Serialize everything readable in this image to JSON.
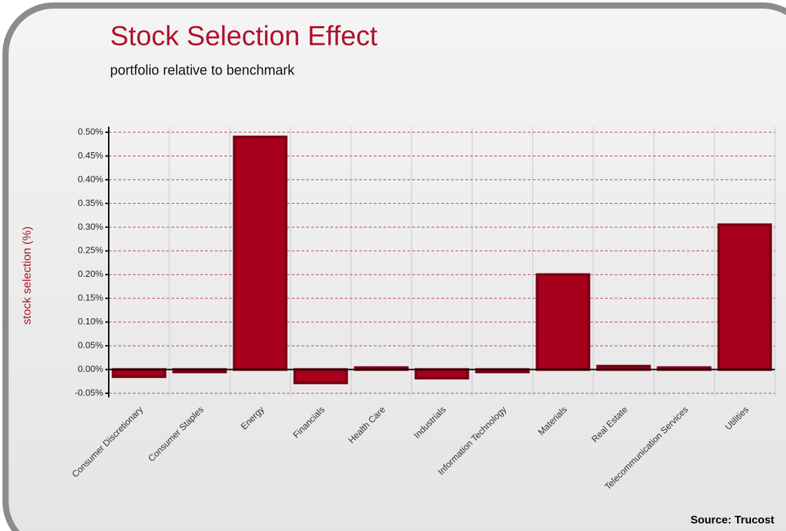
{
  "chart_data": {
    "type": "bar",
    "title": "Stock Selection Effect",
    "subtitle": "portfolio relative to benchmark",
    "y_label": "stock selection (%)",
    "source": "Source: Trucost",
    "categories": [
      "Consumer Discretionary",
      "Consumer Staples",
      "Energy",
      "Financials",
      "Health Care",
      "Industrials",
      "Information Technology",
      "Materials",
      "Real Estate",
      "Telecommunication Services",
      "Utilities"
    ],
    "values": [
      -0.015,
      -0.005,
      0.49,
      -0.028,
      0.004,
      -0.018,
      -0.005,
      0.2,
      0.007,
      0.004,
      0.305
    ],
    "color": "#a8001c",
    "ylim": [
      -0.05,
      0.5
    ],
    "yticks": [
      {
        "value": -0.05,
        "label": "-0.05%"
      },
      {
        "value": 0,
        "label": "0.00%"
      },
      {
        "value": 0.05,
        "label": "0.05%"
      },
      {
        "value": 0.1,
        "label": "0.10%"
      },
      {
        "value": 0.15,
        "label": "0.15%"
      },
      {
        "value": 0.2,
        "label": "0.20%"
      },
      {
        "value": 0.25,
        "label": "0.25%"
      },
      {
        "value": 0.3,
        "label": "0.30%"
      },
      {
        "value": 0.35,
        "label": "0.35%"
      },
      {
        "value": 0.4,
        "label": "0.40%"
      },
      {
        "value": 0.45,
        "label": "0.45%"
      },
      {
        "value": 0.5,
        "label": "0.50%"
      }
    ],
    "grid": true
  }
}
